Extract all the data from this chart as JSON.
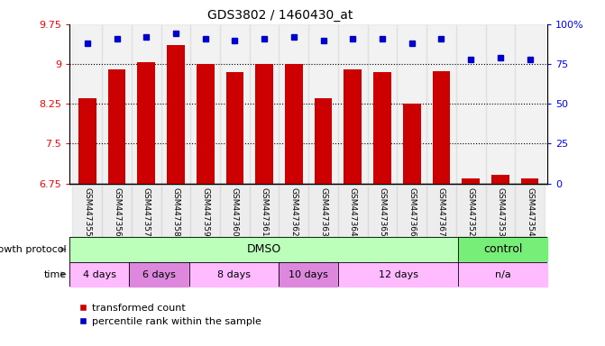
{
  "title": "GDS3802 / 1460430_at",
  "samples": [
    "GSM447355",
    "GSM447356",
    "GSM447357",
    "GSM447358",
    "GSM447359",
    "GSM447360",
    "GSM447361",
    "GSM447362",
    "GSM447363",
    "GSM447364",
    "GSM447365",
    "GSM447366",
    "GSM447367",
    "GSM447352",
    "GSM447353",
    "GSM447354"
  ],
  "red_values": [
    8.35,
    8.9,
    9.03,
    9.35,
    9.0,
    8.85,
    9.0,
    9.0,
    8.35,
    8.9,
    8.85,
    8.25,
    8.87,
    6.85,
    6.92,
    6.85
  ],
  "blue_values": [
    88,
    91,
    92,
    94,
    91,
    90,
    91,
    92,
    90,
    91,
    91,
    88,
    91,
    78,
    79,
    78
  ],
  "ylim_left": [
    6.75,
    9.75
  ],
  "ylim_right": [
    0,
    100
  ],
  "yticks_left": [
    6.75,
    7.5,
    8.25,
    9.0,
    9.75
  ],
  "yticks_right": [
    0,
    25,
    50,
    75,
    100
  ],
  "ytick_labels_left": [
    "6.75",
    "7.5",
    "8.25",
    "9",
    "9.75"
  ],
  "ytick_labels_right": [
    "0",
    "25",
    "50",
    "75",
    "100%"
  ],
  "grid_lines": [
    7.5,
    8.25,
    9.0
  ],
  "bar_color": "#cc0000",
  "dot_color": "#0000cc",
  "bar_bottom": 6.75,
  "dmso_samples": 13,
  "control_samples": 3,
  "dmso_color": "#bbffbb",
  "control_color": "#77ee77",
  "time_blocks": [
    {
      "label": "4 days",
      "start": 0,
      "end": 2,
      "color": "#ffbbff"
    },
    {
      "label": "6 days",
      "start": 2,
      "end": 4,
      "color": "#dd88dd"
    },
    {
      "label": "8 days",
      "start": 4,
      "end": 7,
      "color": "#ffbbff"
    },
    {
      "label": "10 days",
      "start": 7,
      "end": 9,
      "color": "#dd88dd"
    },
    {
      "label": "12 days",
      "start": 9,
      "end": 13,
      "color": "#ffbbff"
    },
    {
      "label": "n/a",
      "start": 13,
      "end": 16,
      "color": "#ffbbff"
    }
  ],
  "legend_red": "transformed count",
  "legend_blue": "percentile rank within the sample",
  "growth_protocol_label": "growth protocol",
  "time_label": "time",
  "sample_bg_color": "#cccccc",
  "bg_color": "#ffffff"
}
